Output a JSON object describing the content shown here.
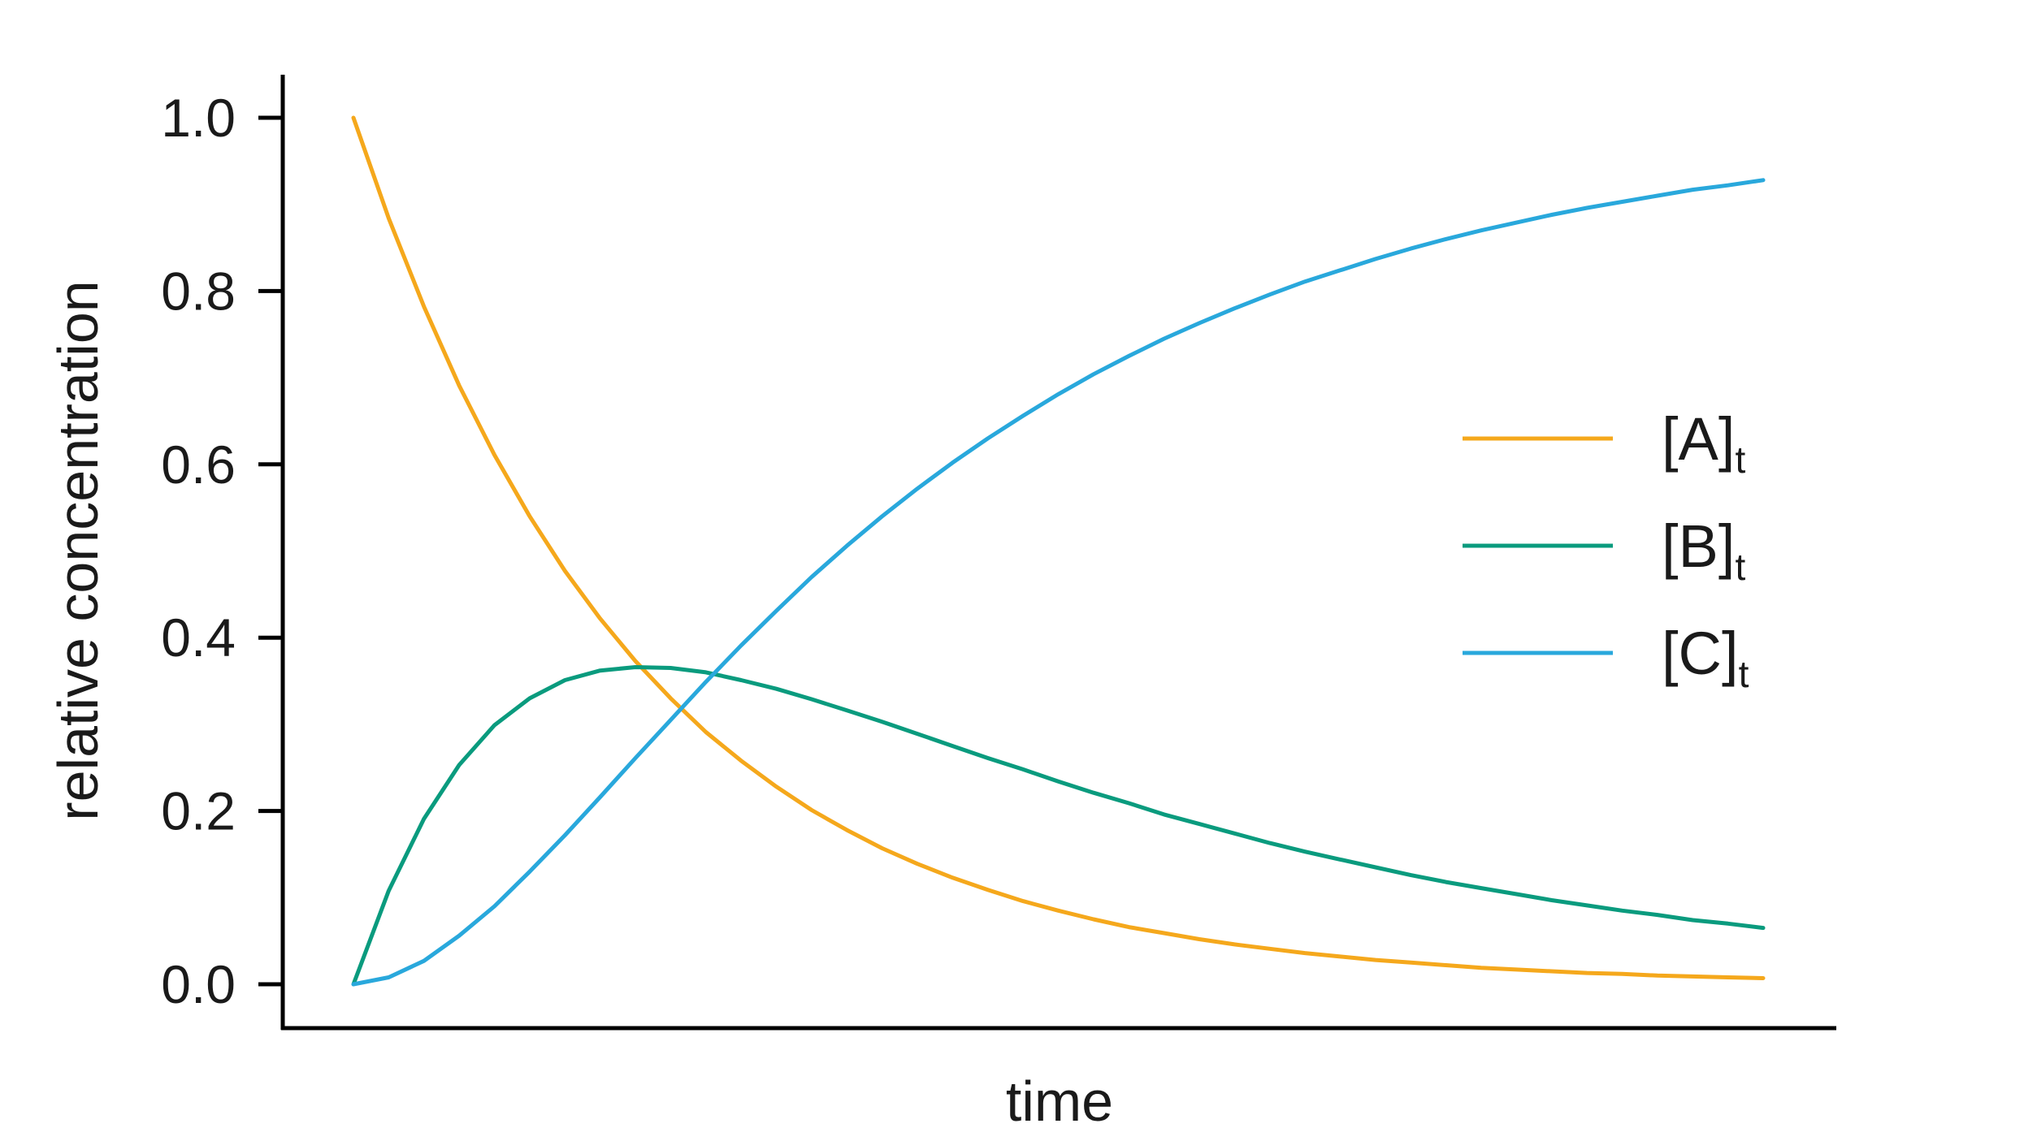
{
  "chart_data": {
    "type": "line",
    "xlabel": "time",
    "ylabel": "relative concentration",
    "ylim": [
      -0.05,
      1.05
    ],
    "xlim": [
      -0.5,
      10.5
    ],
    "yticks": [
      "0.0",
      "0.2",
      "0.4",
      "0.6",
      "0.8",
      "1.0"
    ],
    "ytick_values": [
      0.0,
      0.2,
      0.4,
      0.6,
      0.8,
      1.0
    ],
    "xticks_shown": false,
    "grid": false,
    "legend_position": "right",
    "x": [
      0,
      0.25,
      0.5,
      0.75,
      1,
      1.25,
      1.5,
      1.75,
      2,
      2.25,
      2.5,
      2.75,
      3,
      3.25,
      3.5,
      3.75,
      4,
      4.25,
      4.5,
      4.75,
      5,
      5.25,
      5.5,
      5.75,
      6,
      6.25,
      6.5,
      6.75,
      7,
      7.25,
      7.5,
      7.75,
      8,
      8.25,
      8.5,
      8.75,
      9,
      9.25,
      9.5,
      9.75,
      10
    ],
    "series": [
      {
        "name": "[A]",
        "subscript": "t",
        "color": "#f5a81c",
        "values": [
          1.0,
          0.884,
          0.782,
          0.691,
          0.611,
          0.54,
          0.477,
          0.422,
          0.373,
          0.33,
          0.291,
          0.258,
          0.228,
          0.201,
          0.178,
          0.157,
          0.139,
          0.123,
          0.109,
          0.096,
          0.085,
          0.075,
          0.066,
          0.059,
          0.052,
          0.046,
          0.041,
          0.036,
          0.032,
          0.028,
          0.025,
          0.022,
          0.019,
          0.017,
          0.015,
          0.013,
          0.012,
          0.01,
          0.009,
          0.008,
          0.007
        ]
      },
      {
        "name": "[B]",
        "subscript": "t",
        "color": "#0a9b7e",
        "values": [
          0.0,
          0.108,
          0.191,
          0.253,
          0.299,
          0.33,
          0.351,
          0.362,
          0.366,
          0.365,
          0.36,
          0.351,
          0.341,
          0.329,
          0.316,
          0.303,
          0.289,
          0.275,
          0.261,
          0.248,
          0.234,
          0.221,
          0.209,
          0.196,
          0.185,
          0.174,
          0.163,
          0.153,
          0.144,
          0.135,
          0.126,
          0.118,
          0.111,
          0.104,
          0.097,
          0.091,
          0.085,
          0.08,
          0.074,
          0.07,
          0.065
        ]
      },
      {
        "name": "[C]",
        "subscript": "t",
        "color": "#29a8dc",
        "values": [
          0.0,
          0.008,
          0.027,
          0.056,
          0.09,
          0.13,
          0.172,
          0.216,
          0.261,
          0.305,
          0.349,
          0.391,
          0.431,
          0.47,
          0.506,
          0.54,
          0.572,
          0.602,
          0.63,
          0.656,
          0.681,
          0.704,
          0.725,
          0.745,
          0.763,
          0.78,
          0.796,
          0.811,
          0.824,
          0.837,
          0.849,
          0.86,
          0.87,
          0.879,
          0.888,
          0.896,
          0.903,
          0.91,
          0.917,
          0.922,
          0.928
        ]
      }
    ]
  }
}
